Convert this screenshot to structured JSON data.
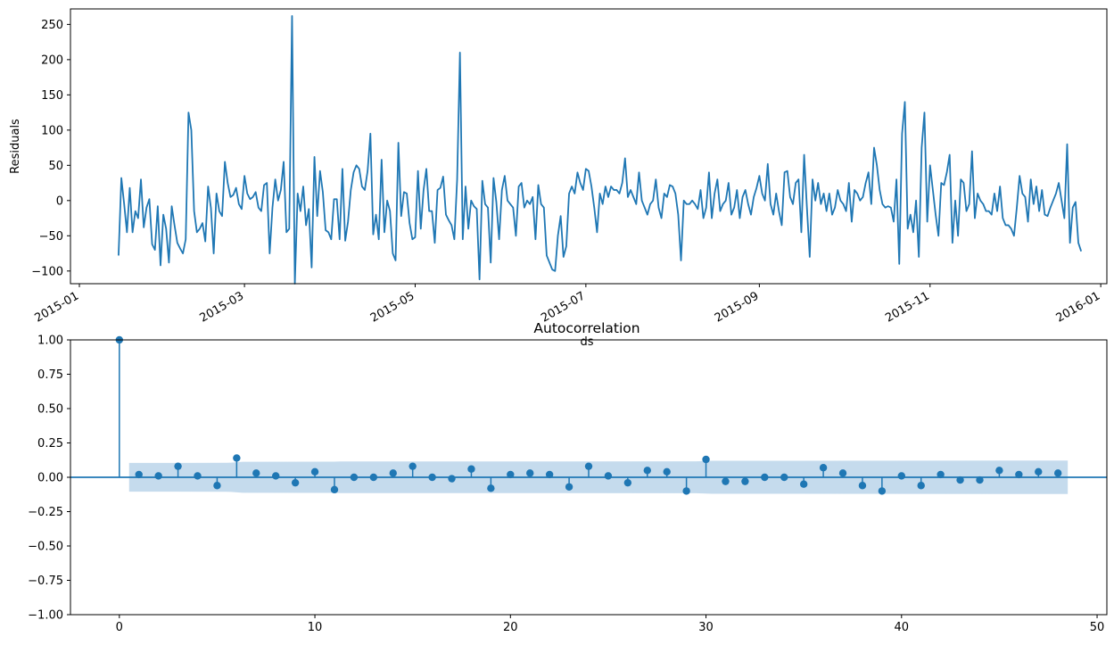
{
  "colors": {
    "series": "#1f77b4",
    "band": "#a6c8e4",
    "axis": "#000000"
  },
  "chart_data": [
    {
      "type": "line",
      "title": "",
      "xlabel": "ds",
      "ylabel": "Residuals",
      "ylim": [
        -118,
        272
      ],
      "xlim": [
        "2015-01-01",
        "2015-12-31"
      ],
      "yticks": [
        -100,
        -50,
        0,
        50,
        100,
        150,
        200,
        250
      ],
      "ytick_labels": [
        "−100",
        "−50",
        "0",
        "50",
        "100",
        "150",
        "200",
        "250"
      ],
      "xticks": [
        "2015-01-01",
        "2015-03-01",
        "2015-05-01",
        "2015-07-01",
        "2015-09-01",
        "2015-11-01",
        "2016-01-01"
      ],
      "xtick_labels": [
        "2015-01",
        "2015-03",
        "2015-05",
        "2015-07",
        "2015-09",
        "2015-11",
        "2016-01"
      ],
      "start_date": "2015-01-15",
      "y": [
        -78,
        32,
        -5,
        -45,
        18,
        -45,
        -15,
        -25,
        30,
        -38,
        -10,
        2,
        -62,
        -70,
        -8,
        -92,
        -20,
        -40,
        -88,
        -8,
        -35,
        -60,
        -68,
        -75,
        -55,
        125,
        100,
        -15,
        -45,
        -40,
        -32,
        -58,
        20,
        -10,
        -75,
        10,
        -15,
        -22,
        55,
        25,
        5,
        8,
        18,
        -5,
        -12,
        35,
        10,
        2,
        5,
        12,
        -10,
        -15,
        22,
        25,
        -75,
        -10,
        30,
        0,
        15,
        55,
        -45,
        -40,
        262,
        -118,
        10,
        -15,
        20,
        -35,
        -12,
        -95,
        62,
        -22,
        42,
        12,
        -42,
        -45,
        -55,
        2,
        2,
        -55,
        45,
        -57,
        -30,
        15,
        40,
        50,
        45,
        20,
        15,
        42,
        95,
        -48,
        -20,
        -55,
        58,
        -45,
        0,
        -15,
        -75,
        -85,
        82,
        -22,
        12,
        10,
        -32,
        -55,
        -52,
        42,
        -40,
        15,
        45,
        -15,
        -15,
        -60,
        15,
        18,
        34,
        -20,
        -28,
        -35,
        -55,
        30,
        210,
        -55,
        20,
        -40,
        0,
        -8,
        -12,
        -112,
        28,
        -5,
        -10,
        -88,
        32,
        -2,
        -55,
        15,
        35,
        0,
        -5,
        -10,
        -50,
        20,
        25,
        -10,
        0,
        -5,
        5,
        -55,
        22,
        -5,
        -10,
        -78,
        -88,
        -98,
        -100,
        -50,
        -22,
        -80,
        -65,
        10,
        20,
        10,
        40,
        25,
        15,
        45,
        42,
        20,
        -10,
        -45,
        10,
        -5,
        20,
        5,
        20,
        15,
        15,
        10,
        25,
        60,
        5,
        15,
        5,
        -5,
        40,
        0,
        -10,
        -20,
        -5,
        0,
        30,
        -10,
        -25,
        10,
        5,
        22,
        20,
        10,
        -20,
        -85,
        0,
        -5,
        -5,
        0,
        -5,
        -12,
        15,
        -25,
        -10,
        40,
        -25,
        10,
        30,
        -15,
        -5,
        0,
        25,
        -20,
        -10,
        15,
        -25,
        5,
        15,
        -5,
        -20,
        5,
        18,
        35,
        10,
        0,
        52,
        -5,
        -20,
        10,
        -15,
        -35,
        40,
        42,
        5,
        -5,
        25,
        30,
        -45,
        65,
        -10,
        -80,
        30,
        0,
        25,
        -5,
        10,
        -15,
        10,
        -20,
        -10,
        15,
        0,
        -5,
        -15,
        25,
        -30,
        15,
        10,
        0,
        5,
        25,
        40,
        -5,
        75,
        50,
        15,
        -5,
        -10,
        -8,
        -10,
        -30,
        30,
        -90,
        95,
        140,
        -40,
        -20,
        -45,
        0,
        -80,
        75,
        125,
        -30,
        50,
        15,
        -20,
        -50,
        25,
        22,
        40,
        65,
        -60,
        0,
        -50,
        30,
        25,
        -15,
        -5,
        70,
        -25,
        10,
        0,
        -5,
        -15,
        -15,
        -20,
        10,
        -15,
        20,
        -25,
        -35,
        -35,
        -40,
        -50,
        -10,
        35,
        10,
        5,
        -30,
        30,
        -5,
        20,
        -15,
        15,
        -20,
        -22,
        -10,
        0,
        10,
        25,
        0,
        -25,
        80,
        -60,
        -10,
        -2,
        -60,
        -72
      ]
    },
    {
      "type": "stem",
      "title": "Autocorrelation",
      "xlabel": "",
      "ylabel": "",
      "xlim": [
        -2.5,
        50.5
      ],
      "ylim": [
        -1.0,
        1.0
      ],
      "xticks": [
        0,
        10,
        20,
        30,
        40,
        50
      ],
      "xtick_labels": [
        "0",
        "10",
        "20",
        "30",
        "40",
        "50"
      ],
      "yticks": [
        -1.0,
        -0.75,
        -0.5,
        -0.25,
        0.0,
        0.25,
        0.5,
        0.75,
        1.0
      ],
      "ytick_labels": [
        "−1.00",
        "−0.75",
        "−0.50",
        "−0.25",
        "0.00",
        "0.25",
        "0.50",
        "0.75",
        "1.00"
      ],
      "lags": [
        0,
        1,
        2,
        3,
        4,
        5,
        6,
        7,
        8,
        9,
        10,
        11,
        12,
        13,
        14,
        15,
        16,
        17,
        18,
        19,
        20,
        21,
        22,
        23,
        24,
        25,
        26,
        27,
        28,
        29,
        30,
        31,
        32,
        33,
        34,
        35,
        36,
        37,
        38,
        39,
        40,
        41,
        42,
        43,
        44,
        45,
        46,
        47,
        48
      ],
      "values": [
        1.0,
        0.02,
        0.01,
        0.08,
        0.01,
        -0.06,
        0.14,
        0.03,
        0.01,
        -0.04,
        0.04,
        -0.09,
        0.0,
        0.0,
        0.03,
        0.08,
        0.0,
        -0.01,
        0.06,
        -0.08,
        0.02,
        0.03,
        0.02,
        -0.07,
        0.08,
        0.01,
        -0.04,
        0.05,
        0.04,
        -0.1,
        0.13,
        -0.03,
        -0.03,
        0.0,
        0.0,
        -0.05,
        0.07,
        0.03,
        -0.06,
        -0.1,
        0.01,
        -0.06,
        0.02,
        -0.02,
        -0.02,
        0.05,
        0.02,
        0.04,
        0.03
      ],
      "confint_band": [
        [
          0.5,
          0.105
        ],
        [
          3,
          0.105
        ],
        [
          5.7,
          0.106
        ],
        [
          6.3,
          0.113
        ],
        [
          11,
          0.114
        ],
        [
          11.3,
          0.115
        ],
        [
          29.5,
          0.116
        ],
        [
          30.3,
          0.12
        ],
        [
          48.5,
          0.122
        ]
      ]
    }
  ]
}
